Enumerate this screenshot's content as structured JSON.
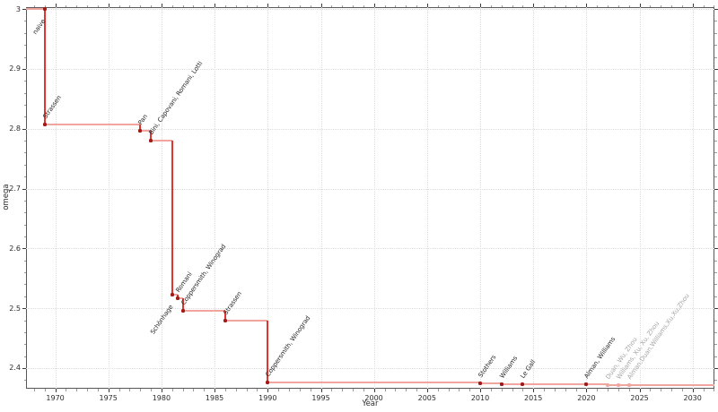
{
  "chart_data": {
    "type": "line",
    "style": "step-post",
    "title": "",
    "xlabel": "Year",
    "ylabel": "omega",
    "xlim": [
      1967.25,
      2032.05
    ],
    "ylim": [
      2.3655,
      3.003
    ],
    "grid": true,
    "x_ticks": [
      1970,
      1975,
      1980,
      1985,
      1990,
      1995,
      2000,
      2005,
      2010,
      2015,
      2020,
      2025,
      2030
    ],
    "x_tick_labels": [
      "1970",
      "1975",
      "1980",
      "1985",
      "1990",
      "1995",
      "2000",
      "2005",
      "2010",
      "2015",
      "2020",
      "2025",
      "2030"
    ],
    "x_minor_step": 1,
    "y_ticks": [
      2.4,
      2.5,
      2.6,
      2.7,
      2.8,
      2.9,
      3.0
    ],
    "y_tick_labels": [
      "2.4",
      "2.5",
      "2.6",
      "2.7",
      "2.8",
      "2.9",
      "3"
    ],
    "y_minor_step": 0.02,
    "points": [
      {
        "year": 1969,
        "omega": 3.0,
        "label": "naive",
        "label_pos": "below",
        "recent": false
      },
      {
        "year": 1969,
        "omega": 2.8074,
        "label": "Strassen",
        "label_pos": "above",
        "recent": false
      },
      {
        "year": 1978,
        "omega": 2.796,
        "label": "Pan",
        "label_pos": "above",
        "recent": false
      },
      {
        "year": 1979,
        "omega": 2.78,
        "label": "Bini, Capovani, Romani, Lotti",
        "label_pos": "above",
        "recent": false
      },
      {
        "year": 1981,
        "omega": 2.522,
        "label": "Schönhage",
        "label_pos": "below",
        "recent": false
      },
      {
        "year": 1981.5,
        "omega": 2.517,
        "label": "Romani",
        "label_pos": "above",
        "recent": false
      },
      {
        "year": 1982,
        "omega": 2.496,
        "label": "Coppersmith, Winograd",
        "label_pos": "above",
        "recent": false
      },
      {
        "year": 1986,
        "omega": 2.479,
        "label": "Strassen",
        "label_pos": "above",
        "recent": false
      },
      {
        "year": 1990,
        "omega": 2.376,
        "label": "Coppersmith, Winograd",
        "label_pos": "above",
        "recent": false
      },
      {
        "year": 2010,
        "omega": 2.374,
        "label": "Stothers",
        "label_pos": "above",
        "recent": false
      },
      {
        "year": 2012,
        "omega": 2.3729,
        "label": "Williams",
        "label_pos": "above",
        "recent": false
      },
      {
        "year": 2014,
        "omega": 2.3728,
        "label": "Le Gall",
        "label_pos": "above",
        "recent": false
      },
      {
        "year": 2020,
        "omega": 2.3727,
        "label": "Alman, Williams",
        "label_pos": "above",
        "recent": false
      },
      {
        "year": 2022,
        "omega": 2.3719,
        "label": "Duan, Wu, Zhou",
        "label_pos": "above",
        "recent": true
      },
      {
        "year": 2023,
        "omega": 2.3716,
        "label": "Williams, Xu, Xu, Zhou",
        "label_pos": "above",
        "recent": true
      },
      {
        "year": 2024,
        "omega": 2.3713,
        "label": "Alman,Duan,Williams,Xu,Xu,Zhou",
        "label_pos": "above",
        "recent": true
      }
    ],
    "colors": {
      "step_line": "#f2a49e",
      "drop_line": "#e0362e",
      "marker": "#a01b18",
      "marker_recent": "#f0a59f",
      "label": "#262626",
      "label_recent": "#a6a6a6",
      "grid": "#dcdcdc",
      "spine": "#58585a",
      "tick_major": "#3c3c3c",
      "tick_minor": "#9a9a9a"
    }
  }
}
